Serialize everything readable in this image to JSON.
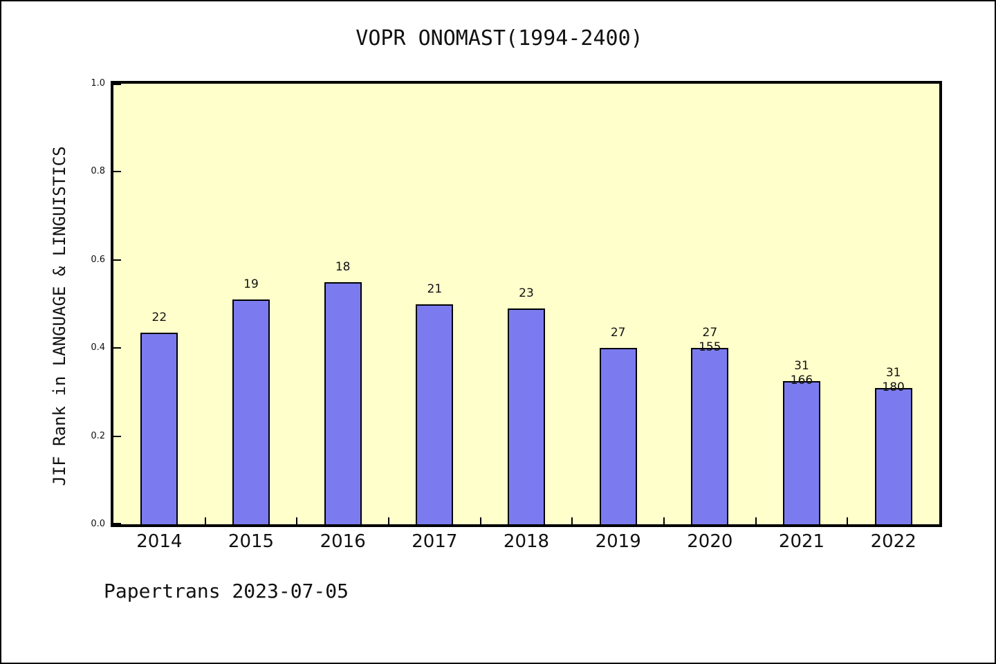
{
  "window": {
    "background": "#ffffff",
    "outer_border_color": "#000000"
  },
  "chart_data": {
    "type": "bar",
    "title": "VOPR ONOMAST(1994-2400)",
    "ylabel": "JIF Rank in LANGUAGE & LINGUISTICS",
    "xlabel": "",
    "footer": "Papertrans 2023-07-05",
    "ylim": [
      0.0,
      1.0
    ],
    "ytick_labels": [
      "0.0",
      "0.2",
      "0.4",
      "0.6",
      "0.8",
      "1.0"
    ],
    "ytick_values": [
      0,
      0.2,
      0.4,
      0.6,
      0.8,
      1.0
    ],
    "grid": false,
    "legend": "none",
    "categories": [
      "2014",
      "2015",
      "2016",
      "2017",
      "2018",
      "2019",
      "2020",
      "2021",
      "2022"
    ],
    "values": [
      0.435,
      0.51,
      0.55,
      0.5,
      0.49,
      0.4,
      0.4,
      0.325,
      0.31
    ],
    "bar_labels": [
      [
        "22"
      ],
      [
        "19"
      ],
      [
        "18"
      ],
      [
        "21"
      ],
      [
        "23"
      ],
      [
        "27"
      ],
      [
        "27",
        "155"
      ],
      [
        "31",
        "166"
      ],
      [
        "31",
        "180"
      ]
    ],
    "colors": {
      "bar_fill": "#7b7bef",
      "bar_edge": "#000000",
      "plot_background": "#ffffcc",
      "axis": "#000000",
      "text": "#111111"
    }
  }
}
